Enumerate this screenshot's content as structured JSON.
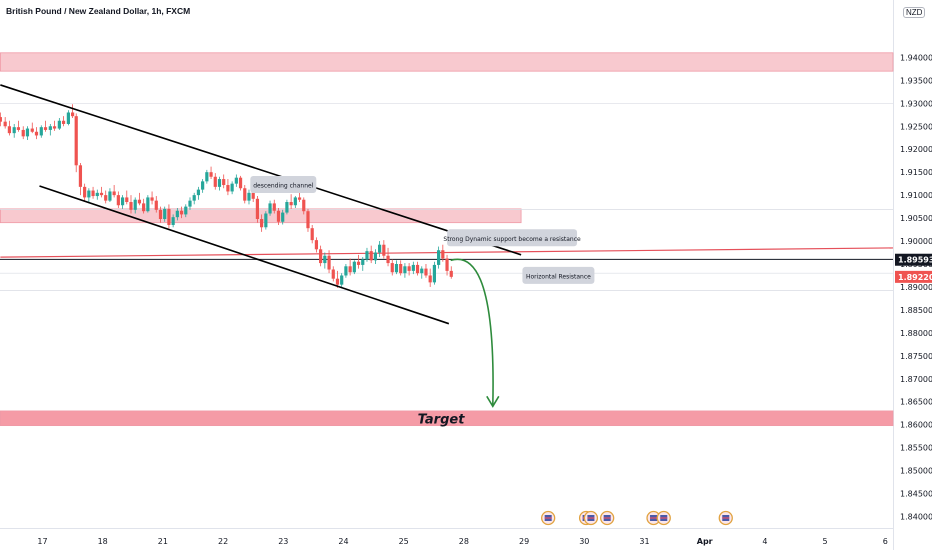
{
  "chart_data": {
    "type": "candlestick",
    "title": "British Pound / New Zealand Dollar, 1h, FXCM",
    "currency": "NZD",
    "ylim": [
      1.8375,
      1.9525
    ],
    "xlim": [
      0,
      14.7
    ],
    "y_ticks": [
      "1.94000",
      "1.93500",
      "1.93000",
      "1.92500",
      "1.92000",
      "1.91500",
      "1.91000",
      "1.90500",
      "1.90000",
      "1.89500",
      "1.89000",
      "1.88500",
      "1.88000",
      "1.87500",
      "1.87000",
      "1.86500",
      "1.86000",
      "1.85500",
      "1.85000",
      "1.84500",
      "1.84000"
    ],
    "x_ticks": [
      {
        "label": "17",
        "t": 0.0
      },
      {
        "label": "18",
        "t": 1.0
      },
      {
        "label": "21",
        "t": 2.0
      },
      {
        "label": "22",
        "t": 3.0
      },
      {
        "label": "23",
        "t": 4.0
      },
      {
        "label": "24",
        "t": 5.0
      },
      {
        "label": "25",
        "t": 6.0
      },
      {
        "label": "28",
        "t": 7.0
      },
      {
        "label": "29",
        "t": 8.0
      },
      {
        "label": "30",
        "t": 9.0
      },
      {
        "label": "31",
        "t": 10.0
      },
      {
        "label": "Apr",
        "t": 11.0
      },
      {
        "label": "4",
        "t": 12.0
      },
      {
        "label": "5",
        "t": 13.0
      },
      {
        "label": "6",
        "t": 14.0
      }
    ],
    "last_price": "1.89593",
    "second_price": "1.89220",
    "zones": [
      {
        "name": "top-resistance-zone",
        "y1": 1.937,
        "y2": 1.941,
        "t1": -0.7,
        "t2": 14.7,
        "color": "#f8c9cf"
      },
      {
        "name": "middle-resistance-zone",
        "y1": 1.904,
        "y2": 1.907,
        "t1": -0.7,
        "t2": 7.95,
        "color": "#f8c9cf"
      },
      {
        "name": "target-zone",
        "y1": 1.8598,
        "y2": 1.863,
        "t1": -0.7,
        "t2": 14.7,
        "color": "#f59ba6"
      }
    ],
    "channel_upper": [
      [
        -0.7,
        1.934
      ],
      [
        7.95,
        1.897
      ]
    ],
    "channel_lower": [
      [
        -0.05,
        1.912
      ],
      [
        6.75,
        1.882
      ]
    ],
    "dynamic_resistance": [
      [
        -0.7,
        1.8965
      ],
      [
        14.7,
        1.8985
      ]
    ],
    "horizontal_resistance": 1.896,
    "faint_levels": [
      1.93,
      1.9069,
      1.893,
      1.8892
    ],
    "projection": {
      "start": [
        6.78,
        1.8958
      ],
      "control": [
        7.4,
        1.896
      ],
      "end": [
        7.48,
        1.864
      ]
    },
    "candles": [
      [
        -0.7,
        1.927,
        1.928,
        1.925,
        1.926
      ],
      [
        -0.62,
        1.926,
        1.927,
        1.9245,
        1.925
      ],
      [
        -0.55,
        1.925,
        1.9262,
        1.923,
        1.9235
      ],
      [
        -0.47,
        1.9235,
        1.9255,
        1.9225,
        1.9248
      ],
      [
        -0.4,
        1.9248,
        1.9262,
        1.9238,
        1.9242
      ],
      [
        -0.32,
        1.9242,
        1.925,
        1.9222,
        1.9228
      ],
      [
        -0.25,
        1.9228,
        1.925,
        1.922,
        1.9245
      ],
      [
        -0.17,
        1.9245,
        1.9258,
        1.9235,
        1.9238
      ],
      [
        -0.1,
        1.9238,
        1.9248,
        1.9222,
        1.923
      ],
      [
        -0.02,
        1.923,
        1.9252,
        1.9225,
        1.9248
      ],
      [
        0.05,
        1.9248,
        1.9262,
        1.9238,
        1.9242
      ],
      [
        0.13,
        1.9242,
        1.9255,
        1.923,
        1.925
      ],
      [
        0.2,
        1.925,
        1.9262,
        1.924,
        1.9245
      ],
      [
        0.28,
        1.9245,
        1.9268,
        1.9242,
        1.9262
      ],
      [
        0.35,
        1.9262,
        1.9272,
        1.925,
        1.9255
      ],
      [
        0.43,
        1.9255,
        1.9285,
        1.9252,
        1.928
      ],
      [
        0.5,
        1.928,
        1.9298,
        1.9268,
        1.9272
      ],
      [
        0.56,
        1.9272,
        1.9278,
        1.915,
        1.9165
      ],
      [
        0.63,
        1.9165,
        1.917,
        1.91,
        1.9118
      ],
      [
        0.7,
        1.9118,
        1.9125,
        1.9088,
        1.9095
      ],
      [
        0.77,
        1.9095,
        1.9115,
        1.9085,
        1.911
      ],
      [
        0.84,
        1.911,
        1.9118,
        1.9092,
        1.9098
      ],
      [
        0.91,
        1.9098,
        1.9112,
        1.909,
        1.9105
      ],
      [
        0.98,
        1.9105,
        1.9118,
        1.9095,
        1.91
      ],
      [
        1.05,
        1.91,
        1.911,
        1.9082,
        1.9088
      ],
      [
        1.12,
        1.9088,
        1.9115,
        1.9085,
        1.9108
      ],
      [
        1.19,
        1.9108,
        1.9122,
        1.9095,
        1.91
      ],
      [
        1.26,
        1.91,
        1.9108,
        1.9072,
        1.9078
      ],
      [
        1.33,
        1.9078,
        1.91,
        1.907,
        1.9095
      ],
      [
        1.4,
        1.9095,
        1.911,
        1.908,
        1.9085
      ],
      [
        1.47,
        1.9085,
        1.91,
        1.906,
        1.9068
      ],
      [
        1.54,
        1.9068,
        1.9095,
        1.906,
        1.909
      ],
      [
        1.61,
        1.909,
        1.9105,
        1.9078,
        1.9082
      ],
      [
        1.68,
        1.9082,
        1.9092,
        1.906,
        1.9065
      ],
      [
        1.75,
        1.9065,
        1.91,
        1.9062,
        1.9095
      ],
      [
        1.82,
        1.9095,
        1.9108,
        1.908,
        1.9088
      ],
      [
        1.89,
        1.9088,
        1.9098,
        1.9062,
        1.9068
      ],
      [
        1.96,
        1.9068,
        1.9075,
        1.904,
        1.9048
      ],
      [
        2.03,
        1.9048,
        1.9075,
        1.9042,
        1.907
      ],
      [
        2.1,
        1.907,
        1.908,
        1.9028,
        1.9035
      ],
      [
        2.17,
        1.9035,
        1.9058,
        1.903,
        1.9052
      ],
      [
        2.24,
        1.9052,
        1.9072,
        1.9045,
        1.9066
      ],
      [
        2.31,
        1.9066,
        1.9075,
        1.905,
        1.9058
      ],
      [
        2.38,
        1.9058,
        1.908,
        1.9052,
        1.9075
      ],
      [
        2.45,
        1.9075,
        1.9095,
        1.9068,
        1.9088
      ],
      [
        2.52,
        1.9088,
        1.9105,
        1.908,
        1.91
      ],
      [
        2.59,
        1.91,
        1.9118,
        1.909,
        1.9112
      ],
      [
        2.66,
        1.9112,
        1.9135,
        1.9105,
        1.913
      ],
      [
        2.73,
        1.913,
        1.9155,
        1.9125,
        1.915
      ],
      [
        2.8,
        1.915,
        1.9162,
        1.9135,
        1.914
      ],
      [
        2.87,
        1.914,
        1.9148,
        1.9112,
        1.9118
      ],
      [
        2.94,
        1.9118,
        1.914,
        1.911,
        1.9135
      ],
      [
        3.01,
        1.9135,
        1.9145,
        1.9115,
        1.9122
      ],
      [
        3.08,
        1.9122,
        1.9135,
        1.91,
        1.9108
      ],
      [
        3.15,
        1.9108,
        1.913,
        1.9102,
        1.9125
      ],
      [
        3.22,
        1.9125,
        1.9145,
        1.9118,
        1.9138
      ],
      [
        3.29,
        1.9138,
        1.9142,
        1.911,
        1.9115
      ],
      [
        3.36,
        1.9115,
        1.9122,
        1.9082,
        1.9088
      ],
      [
        3.43,
        1.9088,
        1.9112,
        1.908,
        1.9105
      ],
      [
        3.5,
        1.9105,
        1.9118,
        1.9085,
        1.9092
      ],
      [
        3.57,
        1.9092,
        1.9098,
        1.904,
        1.9048
      ],
      [
        3.64,
        1.9048,
        1.9058,
        1.902,
        1.903
      ],
      [
        3.71,
        1.903,
        1.9065,
        1.9025,
        1.906
      ],
      [
        3.78,
        1.906,
        1.9088,
        1.9055,
        1.9082
      ],
      [
        3.85,
        1.9082,
        1.909,
        1.906,
        1.9066
      ],
      [
        3.92,
        1.9066,
        1.9072,
        1.9035,
        1.9042
      ],
      [
        3.99,
        1.9042,
        1.9068,
        1.9036,
        1.9062
      ],
      [
        4.06,
        1.9062,
        1.909,
        1.9058,
        1.9085
      ],
      [
        4.13,
        1.9085,
        1.9102,
        1.907,
        1.9078
      ],
      [
        4.2,
        1.9078,
        1.9098,
        1.9072,
        1.9095
      ],
      [
        4.27,
        1.9095,
        1.9112,
        1.9085,
        1.909
      ],
      [
        4.34,
        1.909,
        1.9095,
        1.9058,
        1.9065
      ],
      [
        4.41,
        1.9065,
        1.907,
        1.902,
        1.9028
      ],
      [
        4.48,
        1.9028,
        1.9035,
        1.8995,
        1.9002
      ],
      [
        4.55,
        1.9002,
        1.9008,
        1.8975,
        1.8982
      ],
      [
        4.62,
        1.8982,
        1.899,
        1.8945,
        1.8952
      ],
      [
        4.69,
        1.8952,
        1.8975,
        1.894,
        1.8968
      ],
      [
        4.76,
        1.8968,
        1.898,
        1.893,
        1.8938
      ],
      [
        4.83,
        1.8938,
        1.8945,
        1.8912,
        1.8918
      ],
      [
        4.9,
        1.8918,
        1.8935,
        1.8898,
        1.8905
      ],
      [
        4.97,
        1.8905,
        1.893,
        1.89,
        1.8925
      ],
      [
        5.04,
        1.8925,
        1.895,
        1.892,
        1.8945
      ],
      [
        5.11,
        1.8945,
        1.8962,
        1.8925,
        1.8932
      ],
      [
        5.18,
        1.8932,
        1.8958,
        1.8928,
        1.8955
      ],
      [
        5.25,
        1.8955,
        1.897,
        1.894,
        1.8948
      ],
      [
        5.32,
        1.8948,
        1.8965,
        1.8935,
        1.896
      ],
      [
        5.39,
        1.896,
        1.8985,
        1.8955,
        1.8978
      ],
      [
        5.46,
        1.8978,
        1.899,
        1.8952,
        1.8958
      ],
      [
        5.53,
        1.8958,
        1.8982,
        1.895,
        1.8975
      ],
      [
        5.6,
        1.8975,
        1.9,
        1.8965,
        1.8992
      ],
      [
        5.67,
        1.8992,
        1.9002,
        1.8962,
        1.8968
      ],
      [
        5.74,
        1.8968,
        1.8985,
        1.8945,
        1.8952
      ],
      [
        5.81,
        1.8952,
        1.896,
        1.8925,
        1.8932
      ],
      [
        5.88,
        1.8932,
        1.8958,
        1.8928,
        1.895
      ],
      [
        5.95,
        1.895,
        1.8958,
        1.8925,
        1.893
      ],
      [
        6.02,
        1.893,
        1.8952,
        1.892,
        1.8945
      ],
      [
        6.09,
        1.8945,
        1.8952,
        1.8925,
        1.8935
      ],
      [
        6.16,
        1.8935,
        1.8955,
        1.8928,
        1.8948
      ],
      [
        6.23,
        1.8948,
        1.8955,
        1.8925,
        1.893
      ],
      [
        6.3,
        1.893,
        1.8945,
        1.8918,
        1.894
      ],
      [
        6.37,
        1.894,
        1.895,
        1.892,
        1.8925
      ],
      [
        6.44,
        1.8925,
        1.894,
        1.89,
        1.891
      ],
      [
        6.51,
        1.891,
        1.8955,
        1.8905,
        1.8948
      ],
      [
        6.58,
        1.8948,
        1.8988,
        1.894,
        1.898
      ],
      [
        6.65,
        1.898,
        1.8992,
        1.8955,
        1.8962
      ],
      [
        6.72,
        1.8962,
        1.897,
        1.8925,
        1.8935
      ],
      [
        6.79,
        1.8935,
        1.8945,
        1.8918,
        1.8922
      ]
    ],
    "annotations": [
      {
        "text": "descending channel",
        "t": 4.0,
        "y": 1.9122,
        "w": 66
      },
      {
        "text": "Strong Dynamic support become a resistance",
        "t": 7.8,
        "y": 1.9006,
        "w": 130
      },
      {
        "text": "Horizontal  Resistance",
        "t": 8.57,
        "y": 1.8924,
        "w": 72
      }
    ],
    "target_label": "Target",
    "event_icons": [
      8.4,
      9.03,
      9.11,
      9.38,
      10.15,
      10.32,
      11.35
    ]
  }
}
